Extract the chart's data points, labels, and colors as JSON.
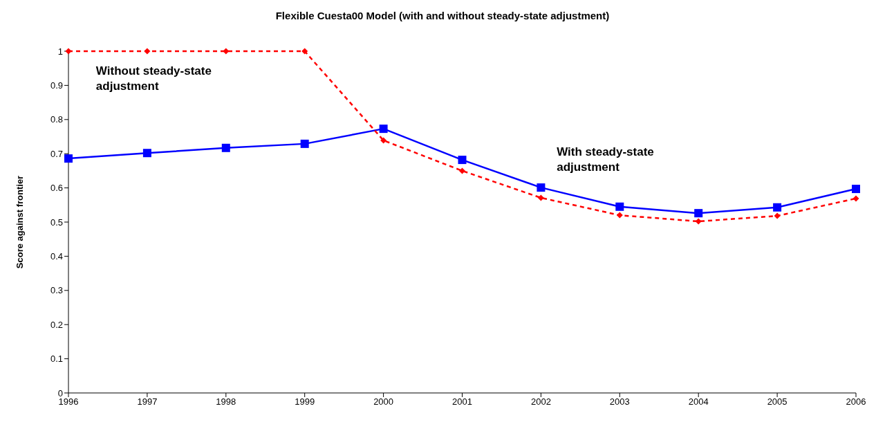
{
  "chart_data": {
    "type": "line",
    "title": "Flexible Cuesta00 Model (with and without steady-state adjustment)",
    "ylabel": "Score against frontier",
    "categories": [
      "1996",
      "1997",
      "1998",
      "1999",
      "2000",
      "2001",
      "2002",
      "2003",
      "2004",
      "2005",
      "2006"
    ],
    "series": [
      {
        "name": "With steady-state adjustment",
        "color": "#0000ff",
        "marker": "square",
        "line_style": "solid",
        "values": [
          0.686,
          0.702,
          0.717,
          0.729,
          0.773,
          0.682,
          0.601,
          0.545,
          0.526,
          0.543,
          0.597
        ]
      },
      {
        "name": "Without steady-state adjustment",
        "color": "#ff0000",
        "marker": "diamond",
        "line_style": "dashed",
        "values": [
          1,
          1,
          1,
          1,
          0.739,
          0.65,
          0.571,
          0.52,
          0.502,
          0.518,
          0.569
        ]
      }
    ],
    "ylim": [
      0,
      1
    ],
    "yticks": [
      0,
      0.1,
      0.2,
      0.3,
      0.4,
      0.5,
      0.6,
      0.7,
      0.8,
      0.9,
      1
    ],
    "grid": false,
    "legend": false
  }
}
